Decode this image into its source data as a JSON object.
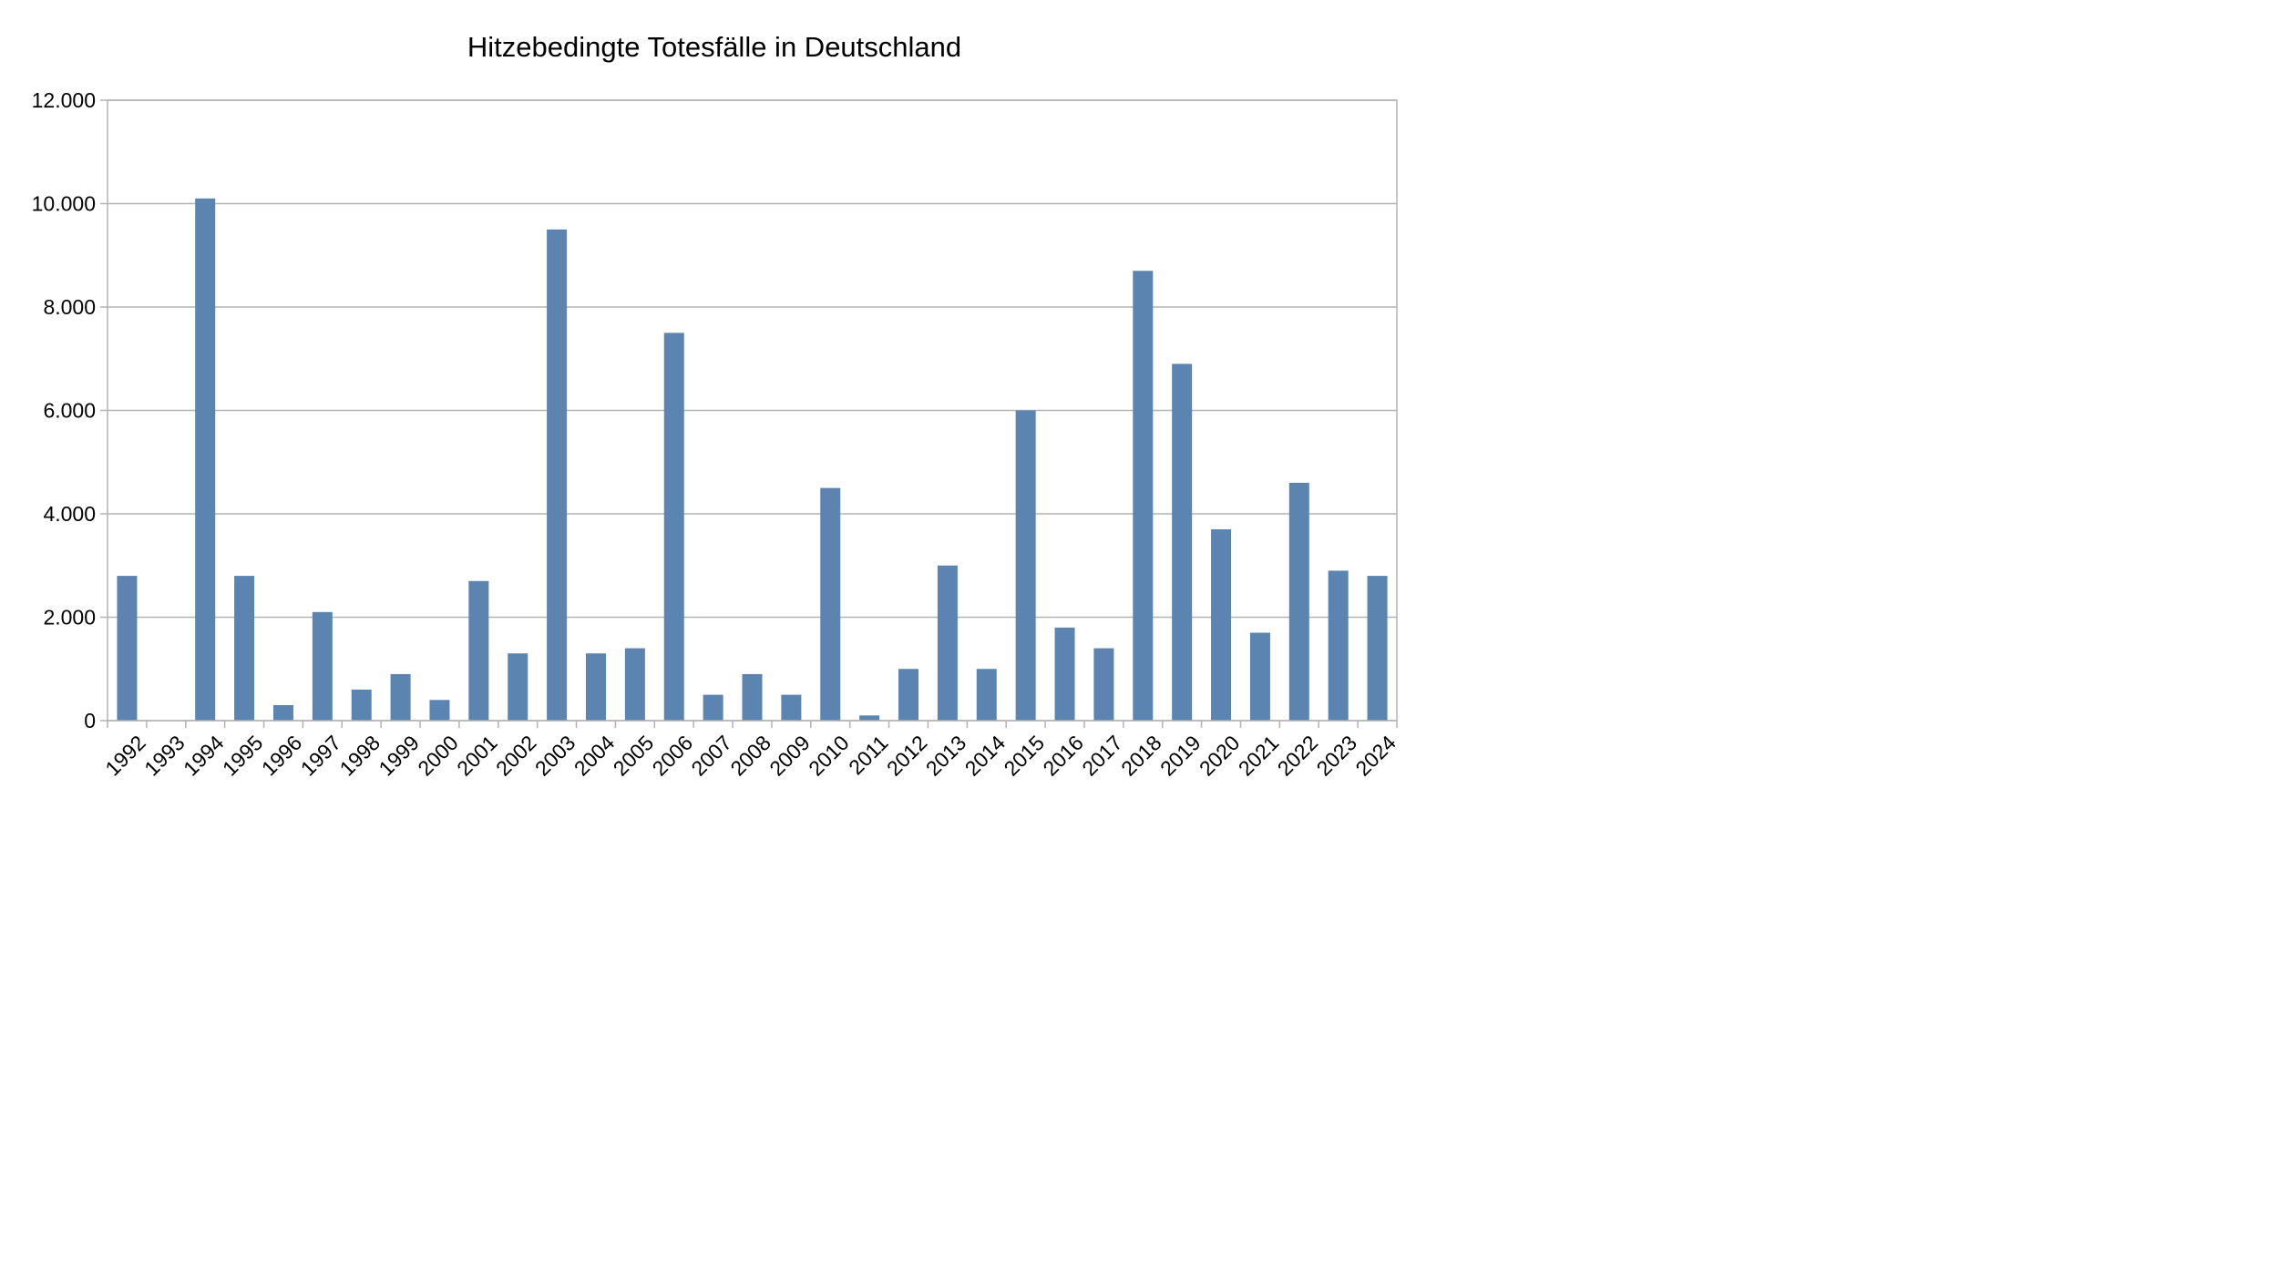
{
  "chart_data": {
    "type": "bar",
    "title": "Hitzebedingte Totesfälle in Deutschland",
    "xlabel": "",
    "ylabel": "",
    "categories": [
      "1992",
      "1993",
      "1994",
      "1995",
      "1996",
      "1997",
      "1998",
      "1999",
      "2000",
      "2001",
      "2002",
      "2003",
      "2004",
      "2005",
      "2006",
      "2007",
      "2008",
      "2009",
      "2010",
      "2011",
      "2012",
      "2013",
      "2014",
      "2015",
      "2016",
      "2017",
      "2018",
      "2019",
      "2020",
      "2021",
      "2022",
      "2023",
      "2024"
    ],
    "values": [
      2800,
      0,
      10100,
      2800,
      300,
      2100,
      600,
      900,
      400,
      2700,
      1300,
      9500,
      1300,
      1400,
      7500,
      500,
      900,
      500,
      4500,
      100,
      1000,
      3000,
      1000,
      6000,
      1800,
      1400,
      8700,
      6900,
      3700,
      1700,
      4600,
      2900,
      2800
    ],
    "ylim": [
      0,
      12000
    ],
    "yticks": [
      0,
      2000,
      4000,
      6000,
      8000,
      10000,
      12000
    ],
    "ytick_labels": [
      "0",
      "2.000",
      "4.000",
      "6.000",
      "8.000",
      "10.000",
      "12.000"
    ],
    "grid": true,
    "legend": "none",
    "colors": {
      "bar": "#5b84b1",
      "grid": "#b3b3b3",
      "axis": "#b3b3b3"
    }
  }
}
